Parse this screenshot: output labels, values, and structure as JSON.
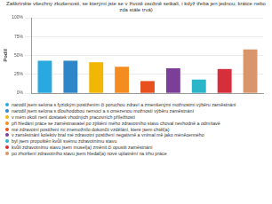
{
  "chart_data": {
    "type": "bar",
    "title": "Zaškrtněte všechny zkušenosti, se kterými jste se v životě osobně setkali, i když třeba jen jednou, krátce nebo zda stále trvá)",
    "y_label": "Podíl",
    "categories": [
      "narodil jsem se/ona s fyzickým postižením či poruchou zdraví a zmenšenými možnostmi výběru zaměstnání",
      "narodil jsem se/ona s dlouhodobou nemocí a s omezenou možností výběru zaměstnání",
      "v mém okolí není dostatek vhodných pracovních příležitostí",
      "při hledání práce se zaměstnavatel po zjištění mého zdravotního stavu choval nevhodně a odmítavě",
      "mé zdravotní postižení mi znemožnilo dokončit vzdělání, které jsem chtěl(a)",
      "v zaměstnání kolektiv bral mé zdravotní postižení negativně a vnímal mě jako méněcenného",
      "byl jsem propuštěn kvůli svému zdravotnímu stavu",
      "kvůli zdravotnímu stavu jsem musel(a) změnit či opustit zaměstnání",
      "po zhoršení zdravotního stavu jsem hledal(a) nové uplatnění na trhu práce"
    ],
    "values": [
      43,
      43,
      41,
      35,
      16,
      33,
      18,
      32,
      58
    ],
    "colors": [
      "#29a9e0",
      "#2e86c8",
      "#f2b705",
      "#f58c1f",
      "#e8501e",
      "#7b3f98",
      "#2bb5c8",
      "#d62e3a",
      "#d9956b"
    ],
    "ylim": [
      0,
      100
    ],
    "yticks": [
      {
        "value": 0,
        "label": "0%"
      },
      {
        "value": 25,
        "label": "25%"
      },
      {
        "value": 50,
        "label": "50%"
      },
      {
        "value": 75,
        "label": "75%"
      },
      {
        "value": 100,
        "label": "100%"
      }
    ],
    "grid": true,
    "tick_labels": "y",
    "legend": "bottom"
  }
}
